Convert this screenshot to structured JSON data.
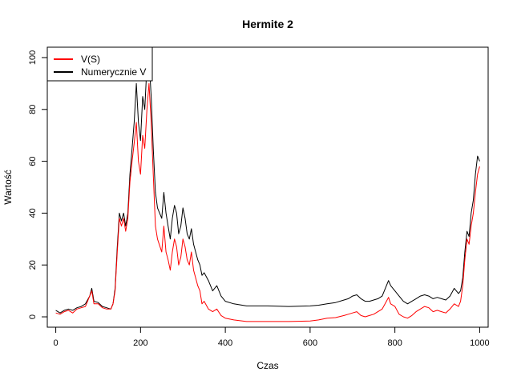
{
  "chart_data": {
    "type": "line",
    "title": "Hermite 2",
    "xlabel": "Czas",
    "ylabel": "Wartość",
    "xlim": [
      -20,
      1020
    ],
    "ylim": [
      -4,
      104
    ],
    "xticks": [
      0,
      200,
      400,
      600,
      800,
      1000
    ],
    "yticks": [
      0,
      20,
      40,
      60,
      80,
      100
    ],
    "grid": false,
    "legend_position": "top-left",
    "series": [
      {
        "name": "V(S)",
        "color": "#ff0000",
        "points": [
          [
            0,
            1.5
          ],
          [
            10,
            1
          ],
          [
            20,
            2
          ],
          [
            30,
            2.5
          ],
          [
            40,
            1.5
          ],
          [
            50,
            3
          ],
          [
            60,
            3.5
          ],
          [
            70,
            4
          ],
          [
            80,
            8
          ],
          [
            85,
            10
          ],
          [
            90,
            5
          ],
          [
            100,
            5
          ],
          [
            110,
            3.5
          ],
          [
            120,
            3
          ],
          [
            130,
            3
          ],
          [
            135,
            5
          ],
          [
            140,
            10
          ],
          [
            145,
            25
          ],
          [
            150,
            38
          ],
          [
            155,
            35
          ],
          [
            160,
            38
          ],
          [
            165,
            33
          ],
          [
            170,
            38
          ],
          [
            175,
            52
          ],
          [
            180,
            60
          ],
          [
            185,
            67
          ],
          [
            190,
            75
          ],
          [
            195,
            60
          ],
          [
            200,
            55
          ],
          [
            205,
            70
          ],
          [
            210,
            65
          ],
          [
            215,
            80
          ],
          [
            220,
            90
          ],
          [
            225,
            75
          ],
          [
            230,
            55
          ],
          [
            235,
            35
          ],
          [
            240,
            30
          ],
          [
            250,
            25
          ],
          [
            255,
            35
          ],
          [
            260,
            25
          ],
          [
            265,
            22
          ],
          [
            270,
            18
          ],
          [
            275,
            25
          ],
          [
            280,
            30
          ],
          [
            285,
            27
          ],
          [
            290,
            20
          ],
          [
            295,
            23
          ],
          [
            300,
            30
          ],
          [
            305,
            27
          ],
          [
            310,
            22
          ],
          [
            315,
            20
          ],
          [
            320,
            25
          ],
          [
            325,
            18
          ],
          [
            330,
            15
          ],
          [
            335,
            12
          ],
          [
            340,
            10
          ],
          [
            345,
            5
          ],
          [
            350,
            6
          ],
          [
            360,
            3
          ],
          [
            370,
            2
          ],
          [
            380,
            3
          ],
          [
            390,
            0.5
          ],
          [
            400,
            -0.5
          ],
          [
            420,
            -1.2
          ],
          [
            450,
            -1.8
          ],
          [
            500,
            -1.8
          ],
          [
            550,
            -1.8
          ],
          [
            600,
            -1.6
          ],
          [
            620,
            -1.2
          ],
          [
            640,
            -0.5
          ],
          [
            660,
            -0.3
          ],
          [
            680,
            0.5
          ],
          [
            690,
            1
          ],
          [
            700,
            1.5
          ],
          [
            710,
            2
          ],
          [
            720,
            0.5
          ],
          [
            730,
            0
          ],
          [
            740,
            0.5
          ],
          [
            750,
            1
          ],
          [
            760,
            2
          ],
          [
            770,
            3
          ],
          [
            780,
            6
          ],
          [
            785,
            7.5
          ],
          [
            790,
            5
          ],
          [
            800,
            4
          ],
          [
            810,
            1
          ],
          [
            820,
            0
          ],
          [
            830,
            -0.5
          ],
          [
            840,
            0.5
          ],
          [
            850,
            2
          ],
          [
            860,
            3
          ],
          [
            870,
            4
          ],
          [
            880,
            3.5
          ],
          [
            890,
            2
          ],
          [
            900,
            2.5
          ],
          [
            910,
            2
          ],
          [
            920,
            1.5
          ],
          [
            930,
            3
          ],
          [
            940,
            5
          ],
          [
            950,
            4
          ],
          [
            955,
            6
          ],
          [
            960,
            12
          ],
          [
            965,
            22
          ],
          [
            970,
            30
          ],
          [
            975,
            28
          ],
          [
            980,
            35
          ],
          [
            985,
            40
          ],
          [
            990,
            48
          ],
          [
            995,
            55
          ],
          [
            1000,
            58
          ]
        ]
      },
      {
        "name": "Numerycznie V",
        "color": "#000000",
        "points": [
          [
            0,
            2.5
          ],
          [
            10,
            1.5
          ],
          [
            20,
            2.5
          ],
          [
            30,
            3
          ],
          [
            40,
            2.5
          ],
          [
            50,
            3.5
          ],
          [
            60,
            4
          ],
          [
            70,
            5
          ],
          [
            80,
            8
          ],
          [
            85,
            11
          ],
          [
            90,
            6
          ],
          [
            100,
            5.5
          ],
          [
            110,
            4
          ],
          [
            120,
            3.5
          ],
          [
            130,
            3
          ],
          [
            135,
            5
          ],
          [
            140,
            11
          ],
          [
            145,
            27
          ],
          [
            150,
            40
          ],
          [
            155,
            37
          ],
          [
            160,
            40
          ],
          [
            165,
            35
          ],
          [
            170,
            40
          ],
          [
            175,
            55
          ],
          [
            180,
            65
          ],
          [
            185,
            75
          ],
          [
            190,
            90
          ],
          [
            195,
            75
          ],
          [
            200,
            68
          ],
          [
            205,
            85
          ],
          [
            210,
            80
          ],
          [
            215,
            97
          ],
          [
            220,
            100
          ],
          [
            225,
            85
          ],
          [
            230,
            65
          ],
          [
            235,
            48
          ],
          [
            240,
            42
          ],
          [
            250,
            38
          ],
          [
            255,
            48
          ],
          [
            260,
            40
          ],
          [
            265,
            35
          ],
          [
            270,
            30
          ],
          [
            275,
            38
          ],
          [
            280,
            43
          ],
          [
            285,
            40
          ],
          [
            290,
            32
          ],
          [
            295,
            35
          ],
          [
            300,
            42
          ],
          [
            305,
            38
          ],
          [
            310,
            32
          ],
          [
            315,
            30
          ],
          [
            320,
            34
          ],
          [
            325,
            28
          ],
          [
            330,
            25
          ],
          [
            335,
            22
          ],
          [
            340,
            20
          ],
          [
            345,
            16
          ],
          [
            350,
            17
          ],
          [
            360,
            14
          ],
          [
            370,
            10
          ],
          [
            380,
            12
          ],
          [
            390,
            8
          ],
          [
            400,
            6
          ],
          [
            420,
            5
          ],
          [
            450,
            4.2
          ],
          [
            500,
            4.2
          ],
          [
            550,
            4.0
          ],
          [
            600,
            4.2
          ],
          [
            620,
            4.5
          ],
          [
            640,
            5
          ],
          [
            660,
            5.5
          ],
          [
            680,
            6.5
          ],
          [
            690,
            7
          ],
          [
            700,
            8
          ],
          [
            710,
            8.5
          ],
          [
            720,
            7
          ],
          [
            730,
            6
          ],
          [
            740,
            6
          ],
          [
            750,
            6.5
          ],
          [
            760,
            7
          ],
          [
            770,
            8
          ],
          [
            780,
            12
          ],
          [
            785,
            14
          ],
          [
            790,
            12
          ],
          [
            800,
            10
          ],
          [
            810,
            8
          ],
          [
            820,
            6
          ],
          [
            830,
            5
          ],
          [
            840,
            6
          ],
          [
            850,
            7
          ],
          [
            860,
            8
          ],
          [
            870,
            8.5
          ],
          [
            880,
            8
          ],
          [
            890,
            7
          ],
          [
            900,
            7.5
          ],
          [
            910,
            7
          ],
          [
            920,
            6.5
          ],
          [
            930,
            8
          ],
          [
            940,
            11
          ],
          [
            950,
            9
          ],
          [
            955,
            10
          ],
          [
            960,
            15
          ],
          [
            965,
            25
          ],
          [
            970,
            33
          ],
          [
            975,
            31
          ],
          [
            980,
            40
          ],
          [
            985,
            45
          ],
          [
            990,
            55
          ],
          [
            995,
            62
          ],
          [
            1000,
            60
          ]
        ]
      }
    ]
  }
}
